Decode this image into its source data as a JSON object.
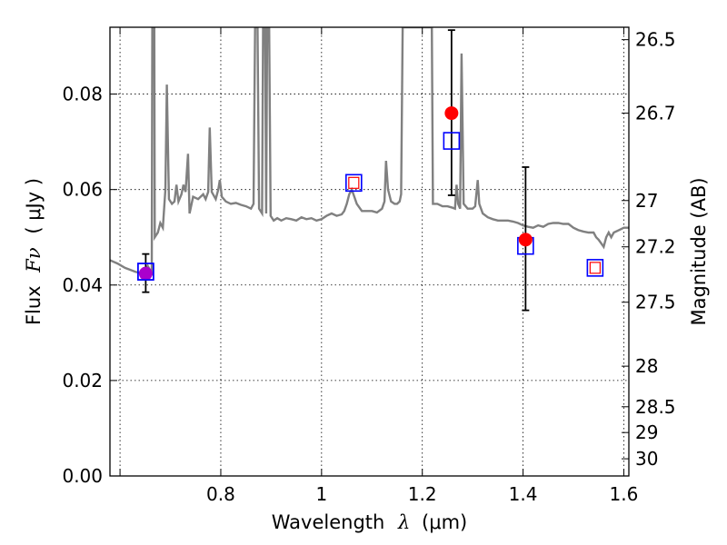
{
  "chart_data": {
    "type": "scatter",
    "xlabel": "Wavelength",
    "xlabel_symbol": "λ",
    "xlabel_unit": "(μm)",
    "ylabel": "Flux",
    "ylabel_symbol": "Fν",
    "ylabel_unit": "( μJy )",
    "y2label": "Magnitude (AB)",
    "xlim": [
      0.58,
      1.61
    ],
    "ylim": [
      0.0,
      0.094
    ],
    "grid": true,
    "grid_style": "dotted",
    "x_ticks": [
      {
        "value": 0.6,
        "label": ""
      },
      {
        "value": 0.8,
        "label": "0.8"
      },
      {
        "value": 1.0,
        "label": "1"
      },
      {
        "value": 1.2,
        "label": "1.2"
      },
      {
        "value": 1.4,
        "label": "1.4"
      },
      {
        "value": 1.6,
        "label": "1.6"
      }
    ],
    "y_ticks": [
      {
        "value": 0.0,
        "label": "0.00"
      },
      {
        "value": 0.02,
        "label": "0.02"
      },
      {
        "value": 0.04,
        "label": "0.04"
      },
      {
        "value": 0.06,
        "label": "0.06"
      },
      {
        "value": 0.08,
        "label": "0.08"
      }
    ],
    "y2_ticks": [
      {
        "label": "26.5",
        "flux": 0.0914
      },
      {
        "label": "26.7",
        "flux": 0.076
      },
      {
        "label": "27",
        "flux": 0.0577
      },
      {
        "label": "27.2",
        "flux": 0.048
      },
      {
        "label": "27.5",
        "flux": 0.0364
      },
      {
        "label": "28",
        "flux": 0.023
      },
      {
        "label": "28.5",
        "flux": 0.0145
      },
      {
        "label": "29",
        "flux": 0.0091
      },
      {
        "label": "30",
        "flux": 0.0036
      }
    ],
    "colors": {
      "model": "#808080",
      "observed": "#ff0000",
      "model_band": "#0000ff",
      "model_band_inner": "#ff0000",
      "overlap": "#aa00cc",
      "errorbar": "#000000",
      "grid": "#000000"
    },
    "model_spectrum": [
      [
        0.58,
        0.0452
      ],
      [
        0.595,
        0.0445
      ],
      [
        0.61,
        0.0436
      ],
      [
        0.62,
        0.0432
      ],
      [
        0.63,
        0.0428
      ],
      [
        0.64,
        0.0425
      ],
      [
        0.648,
        0.0423
      ],
      [
        0.655,
        0.044
      ],
      [
        0.66,
        0.043
      ],
      [
        0.663,
        0.042
      ],
      [
        0.664,
        0.094
      ],
      [
        0.668,
        0.094
      ],
      [
        0.669,
        0.05
      ],
      [
        0.675,
        0.051
      ],
      [
        0.68,
        0.053
      ],
      [
        0.685,
        0.052
      ],
      [
        0.69,
        0.06
      ],
      [
        0.693,
        0.082
      ],
      [
        0.697,
        0.058
      ],
      [
        0.703,
        0.057
      ],
      [
        0.708,
        0.0575
      ],
      [
        0.712,
        0.061
      ],
      [
        0.716,
        0.0575
      ],
      [
        0.722,
        0.059
      ],
      [
        0.726,
        0.061
      ],
      [
        0.73,
        0.0595
      ],
      [
        0.735,
        0.0675
      ],
      [
        0.738,
        0.055
      ],
      [
        0.745,
        0.0585
      ],
      [
        0.755,
        0.058
      ],
      [
        0.765,
        0.059
      ],
      [
        0.77,
        0.058
      ],
      [
        0.775,
        0.0595
      ],
      [
        0.778,
        0.073
      ],
      [
        0.782,
        0.0595
      ],
      [
        0.79,
        0.058
      ],
      [
        0.795,
        0.06
      ],
      [
        0.798,
        0.062
      ],
      [
        0.802,
        0.0585
      ],
      [
        0.81,
        0.0575
      ],
      [
        0.82,
        0.057
      ],
      [
        0.83,
        0.0572
      ],
      [
        0.84,
        0.0568
      ],
      [
        0.85,
        0.0565
      ],
      [
        0.86,
        0.056
      ],
      [
        0.865,
        0.057
      ],
      [
        0.868,
        0.094
      ],
      [
        0.873,
        0.094
      ],
      [
        0.876,
        0.056
      ],
      [
        0.882,
        0.055
      ],
      [
        0.884,
        0.094
      ],
      [
        0.888,
        0.094
      ],
      [
        0.89,
        0.055
      ],
      [
        0.892,
        0.094
      ],
      [
        0.896,
        0.094
      ],
      [
        0.899,
        0.0545
      ],
      [
        0.905,
        0.0535
      ],
      [
        0.912,
        0.054
      ],
      [
        0.92,
        0.0535
      ],
      [
        0.93,
        0.054
      ],
      [
        0.94,
        0.0538
      ],
      [
        0.95,
        0.0535
      ],
      [
        0.96,
        0.0542
      ],
      [
        0.97,
        0.0538
      ],
      [
        0.98,
        0.054
      ],
      [
        0.99,
        0.0535
      ],
      [
        1.0,
        0.0538
      ],
      [
        1.01,
        0.0545
      ],
      [
        1.02,
        0.055
      ],
      [
        1.03,
        0.0545
      ],
      [
        1.04,
        0.0548
      ],
      [
        1.045,
        0.0555
      ],
      [
        1.05,
        0.057
      ],
      [
        1.055,
        0.059
      ],
      [
        1.06,
        0.06
      ],
      [
        1.065,
        0.0585
      ],
      [
        1.07,
        0.057
      ],
      [
        1.08,
        0.0555
      ],
      [
        1.09,
        0.0555
      ],
      [
        1.1,
        0.0555
      ],
      [
        1.11,
        0.0552
      ],
      [
        1.12,
        0.056
      ],
      [
        1.125,
        0.0575
      ],
      [
        1.128,
        0.066
      ],
      [
        1.132,
        0.06
      ],
      [
        1.138,
        0.0575
      ],
      [
        1.145,
        0.057
      ],
      [
        1.15,
        0.057
      ],
      [
        1.155,
        0.0575
      ],
      [
        1.158,
        0.059
      ],
      [
        1.161,
        0.094
      ],
      [
        1.19,
        0.094
      ],
      [
        1.219,
        0.094
      ],
      [
        1.221,
        0.057
      ],
      [
        1.23,
        0.057
      ],
      [
        1.24,
        0.0565
      ],
      [
        1.25,
        0.0565
      ],
      [
        1.26,
        0.0562
      ],
      [
        1.265,
        0.056
      ],
      [
        1.268,
        0.061
      ],
      [
        1.271,
        0.057
      ],
      [
        1.275,
        0.056
      ],
      [
        1.278,
        0.0885
      ],
      [
        1.282,
        0.057
      ],
      [
        1.29,
        0.056
      ],
      [
        1.3,
        0.056
      ],
      [
        1.305,
        0.0565
      ],
      [
        1.31,
        0.062
      ],
      [
        1.313,
        0.057
      ],
      [
        1.32,
        0.055
      ],
      [
        1.33,
        0.0542
      ],
      [
        1.34,
        0.0538
      ],
      [
        1.35,
        0.0535
      ],
      [
        1.36,
        0.0535
      ],
      [
        1.37,
        0.0535
      ],
      [
        1.38,
        0.0533
      ],
      [
        1.39,
        0.053
      ],
      [
        1.4,
        0.0525
      ],
      [
        1.41,
        0.0522
      ],
      [
        1.42,
        0.052
      ],
      [
        1.43,
        0.0525
      ],
      [
        1.44,
        0.0522
      ],
      [
        1.45,
        0.0528
      ],
      [
        1.46,
        0.053
      ],
      [
        1.47,
        0.053
      ],
      [
        1.48,
        0.0528
      ],
      [
        1.49,
        0.0528
      ],
      [
        1.5,
        0.052
      ],
      [
        1.51,
        0.0515
      ],
      [
        1.52,
        0.0512
      ],
      [
        1.53,
        0.051
      ],
      [
        1.54,
        0.051
      ],
      [
        1.545,
        0.05
      ],
      [
        1.55,
        0.0495
      ],
      [
        1.56,
        0.048
      ],
      [
        1.565,
        0.05
      ],
      [
        1.57,
        0.051
      ],
      [
        1.575,
        0.05
      ],
      [
        1.58,
        0.051
      ],
      [
        1.59,
        0.0515
      ],
      [
        1.6,
        0.052
      ],
      [
        1.61,
        0.052
      ]
    ],
    "observed_points": [
      {
        "x": 0.651,
        "y": 0.0424,
        "yerr_low": 0.0385,
        "yerr_high": 0.0465
      },
      {
        "x": 1.258,
        "y": 0.076,
        "yerr_low": 0.0588,
        "yerr_high": 0.0934
      },
      {
        "x": 1.405,
        "y": 0.0495,
        "yerr_low": 0.0347,
        "yerr_high": 0.0647
      }
    ],
    "model_band_points": [
      {
        "x": 0.651,
        "y": 0.0428
      },
      {
        "x": 1.064,
        "y": 0.0614,
        "inner": true
      },
      {
        "x": 1.258,
        "y": 0.0702
      },
      {
        "x": 1.405,
        "y": 0.0482
      },
      {
        "x": 1.543,
        "y": 0.0436,
        "inner": true
      }
    ]
  }
}
